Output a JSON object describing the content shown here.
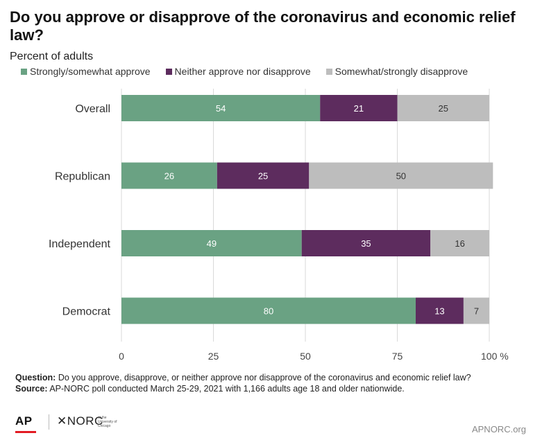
{
  "title": "Do you approve or disapprove of the coronavirus and economic relief law?",
  "subtitle": "Percent of adults",
  "legend": [
    {
      "label": "Strongly/somewhat approve",
      "color": "#6aa283"
    },
    {
      "label": "Neither approve nor disapprove",
      "color": "#5d2c5e"
    },
    {
      "label": "Somewhat/strongly disapprove",
      "color": "#bdbdbd"
    }
  ],
  "chart_data": {
    "type": "bar",
    "orientation": "horizontal",
    "stacked": true,
    "categories": [
      "Overall",
      "Republican",
      "Independent",
      "Democrat"
    ],
    "series": [
      {
        "name": "Strongly/somewhat approve",
        "color": "#6aa283",
        "values": [
          54,
          26,
          49,
          80
        ]
      },
      {
        "name": "Neither approve nor disapprove",
        "color": "#5d2c5e",
        "values": [
          21,
          25,
          35,
          13
        ]
      },
      {
        "name": "Somewhat/strongly disapprove",
        "color": "#bdbdbd",
        "values": [
          25,
          50,
          16,
          7
        ]
      }
    ],
    "xlim": [
      0,
      100
    ],
    "xticks": [
      "0",
      "25",
      "50",
      "75",
      "100 %"
    ],
    "tick_values": [
      0,
      25,
      50,
      75,
      100
    ],
    "grid": true,
    "legend_position": "top"
  },
  "footnote": {
    "question_label": "Question:",
    "question_text": " Do you approve, disapprove, or neither approve nor disapprove of the coronavirus and economic relief law?",
    "source_label": "Source:",
    "source_text": " AP-NORC poll conducted March 25-29, 2021 with 1,166 adults age 18 and older nationwide."
  },
  "footer": {
    "ap_logo": "AP",
    "norc_logo": "✕NORC",
    "norc_small": "at the University of Chicago",
    "site": "APNORC.org"
  }
}
